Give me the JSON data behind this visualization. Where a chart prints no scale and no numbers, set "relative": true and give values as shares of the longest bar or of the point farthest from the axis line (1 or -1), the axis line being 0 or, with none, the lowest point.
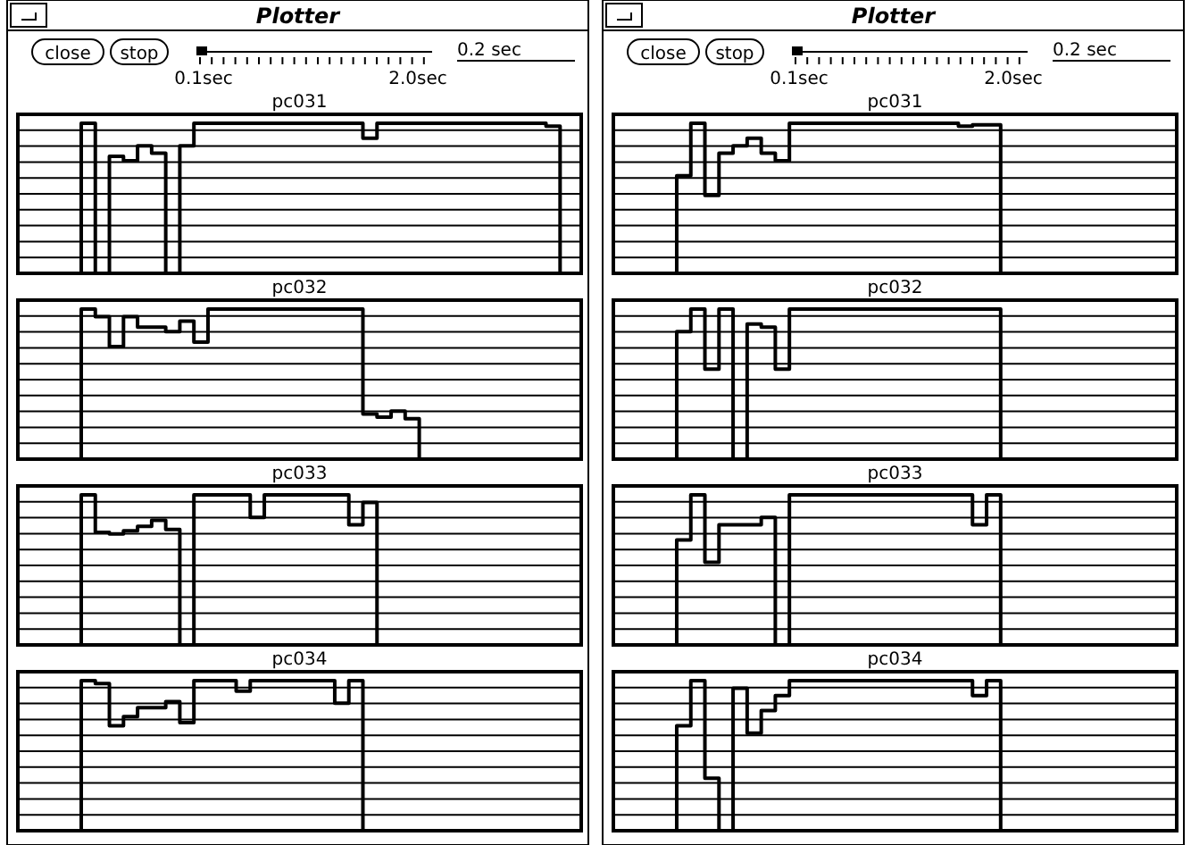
{
  "chart_data": [
    {
      "type": "other",
      "title": "Plotter",
      "annotations": [
        "close",
        "stop",
        "0.1sec",
        "2.0sec",
        "0.2 sec"
      ]
    },
    {
      "type": "step",
      "title": "pc031",
      "relative": true,
      "grid": true,
      "color": "#000000",
      "categories": [
        null,
        null,
        null,
        null,
        null,
        null,
        null,
        null,
        null,
        null,
        null,
        null,
        null,
        null,
        null,
        null,
        null,
        null,
        null,
        null,
        null,
        null,
        null,
        null,
        null,
        null,
        null,
        null,
        null,
        null,
        null,
        null,
        null,
        null,
        null,
        null,
        null,
        null,
        null,
        null
      ],
      "values": [
        null,
        null,
        null,
        0,
        1,
        0,
        0.78,
        0.75,
        0.85,
        0.8,
        0,
        0.85,
        1,
        1,
        1,
        1,
        1,
        1,
        1,
        1,
        1,
        1,
        1,
        1,
        0.9,
        1,
        1,
        1,
        1,
        1,
        1,
        1,
        1,
        1,
        1,
        1,
        1,
        0.98,
        0,
        null
      ]
    },
    {
      "type": "step",
      "title": "pc032",
      "relative": true,
      "grid": true,
      "color": "#000000",
      "categories": [
        null,
        null,
        null,
        null,
        null,
        null,
        null,
        null,
        null,
        null,
        null,
        null,
        null,
        null,
        null,
        null,
        null,
        null,
        null,
        null,
        null,
        null,
        null,
        null,
        null,
        null,
        null,
        null,
        null,
        null,
        null,
        null,
        null,
        null,
        null,
        null,
        null,
        null,
        null,
        null
      ],
      "values": [
        null,
        null,
        null,
        0,
        1,
        0.95,
        0.75,
        0.95,
        0.88,
        0.88,
        0.85,
        0.92,
        0.78,
        1,
        1,
        1,
        1,
        1,
        1,
        1,
        1,
        1,
        1,
        1,
        0.3,
        0.28,
        0.32,
        0.27,
        0,
        null,
        null,
        null,
        null,
        null,
        null,
        null,
        null,
        null,
        null,
        null
      ]
    },
    {
      "type": "step",
      "title": "pc033",
      "relative": true,
      "grid": true,
      "color": "#000000",
      "categories": [
        null,
        null,
        null,
        null,
        null,
        null,
        null,
        null,
        null,
        null,
        null,
        null,
        null,
        null,
        null,
        null,
        null,
        null,
        null,
        null,
        null,
        null,
        null,
        null,
        null,
        null,
        null,
        null,
        null,
        null,
        null,
        null,
        null,
        null,
        null,
        null,
        null,
        null,
        null,
        null
      ],
      "values": [
        null,
        null,
        null,
        0,
        1,
        0.75,
        0.74,
        0.76,
        0.79,
        0.83,
        0.77,
        0,
        1,
        1,
        1,
        1,
        0.85,
        1,
        1,
        1,
        1,
        1,
        1,
        0.8,
        0.95,
        0,
        null,
        null,
        null,
        null,
        null,
        null,
        null,
        null,
        null,
        null,
        null,
        null,
        null,
        null
      ]
    },
    {
      "type": "step",
      "title": "pc034",
      "relative": true,
      "grid": true,
      "color": "#000000",
      "categories": [
        null,
        null,
        null,
        null,
        null,
        null,
        null,
        null,
        null,
        null,
        null,
        null,
        null,
        null,
        null,
        null,
        null,
        null,
        null,
        null,
        null,
        null,
        null,
        null,
        null,
        null,
        null,
        null,
        null,
        null,
        null,
        null,
        null,
        null,
        null,
        null,
        null,
        null,
        null,
        null
      ],
      "values": [
        null,
        null,
        null,
        0,
        1,
        0.98,
        0.7,
        0.76,
        0.82,
        0.82,
        0.86,
        0.72,
        1,
        1,
        1,
        0.93,
        1,
        1,
        1,
        1,
        1,
        1,
        0.85,
        1,
        0,
        null,
        null,
        null,
        null,
        null,
        null,
        null,
        null,
        null,
        null,
        null,
        null,
        null,
        null,
        null
      ]
    },
    {
      "type": "other",
      "title": "Plotter",
      "annotations": [
        "close",
        "stop",
        "0.1sec",
        "2.0sec",
        "0.2 sec"
      ]
    },
    {
      "type": "step",
      "title": "pc031",
      "relative": true,
      "grid": true,
      "color": "#000000",
      "categories": [
        null,
        null,
        null,
        null,
        null,
        null,
        null,
        null,
        null,
        null,
        null,
        null,
        null,
        null,
        null,
        null,
        null,
        null,
        null,
        null,
        null,
        null,
        null,
        null,
        null,
        null,
        null,
        null,
        null,
        null,
        null,
        null,
        null,
        null,
        null,
        null,
        null,
        null,
        null,
        null
      ],
      "values": [
        null,
        null,
        null,
        0,
        0.65,
        1,
        0.52,
        0.8,
        0.85,
        0.9,
        0.8,
        0.75,
        1,
        1,
        1,
        1,
        1,
        1,
        1,
        1,
        1,
        1,
        1,
        1,
        0.98,
        0.99,
        0.99,
        0,
        null,
        null,
        null,
        null,
        null,
        null,
        null,
        null,
        null,
        null,
        null,
        null
      ]
    },
    {
      "type": "step",
      "title": "pc032",
      "relative": true,
      "grid": true,
      "color": "#000000",
      "categories": [
        null,
        null,
        null,
        null,
        null,
        null,
        null,
        null,
        null,
        null,
        null,
        null,
        null,
        null,
        null,
        null,
        null,
        null,
        null,
        null,
        null,
        null,
        null,
        null,
        null,
        null,
        null,
        null,
        null,
        null,
        null,
        null,
        null,
        null,
        null,
        null,
        null,
        null,
        null,
        null
      ],
      "values": [
        null,
        null,
        null,
        0,
        0.85,
        1,
        0.6,
        1,
        0,
        0.9,
        0.88,
        0.6,
        1,
        1,
        1,
        1,
        1,
        1,
        1,
        1,
        1,
        1,
        1,
        1,
        1,
        1,
        1,
        0,
        null,
        null,
        null,
        null,
        null,
        null,
        null,
        null,
        null,
        null,
        null,
        null
      ]
    },
    {
      "type": "step",
      "title": "pc033",
      "relative": true,
      "grid": true,
      "color": "#000000",
      "categories": [
        null,
        null,
        null,
        null,
        null,
        null,
        null,
        null,
        null,
        null,
        null,
        null,
        null,
        null,
        null,
        null,
        null,
        null,
        null,
        null,
        null,
        null,
        null,
        null,
        null,
        null,
        null,
        null,
        null,
        null,
        null,
        null,
        null,
        null,
        null,
        null,
        null,
        null,
        null,
        null
      ],
      "values": [
        null,
        null,
        null,
        0,
        0.7,
        1,
        0.55,
        0.8,
        0.8,
        0.8,
        0.85,
        0,
        1,
        1,
        1,
        1,
        1,
        1,
        1,
        1,
        1,
        1,
        1,
        1,
        1,
        0.8,
        1,
        0,
        null,
        null,
        null,
        null,
        null,
        null,
        null,
        null,
        null,
        null,
        null,
        null
      ]
    },
    {
      "type": "step",
      "title": "pc034",
      "relative": true,
      "grid": true,
      "color": "#000000",
      "categories": [
        null,
        null,
        null,
        null,
        null,
        null,
        null,
        null,
        null,
        null,
        null,
        null,
        null,
        null,
        null,
        null,
        null,
        null,
        null,
        null,
        null,
        null,
        null,
        null,
        null,
        null,
        null,
        null,
        null,
        null,
        null,
        null,
        null,
        null,
        null,
        null,
        null,
        null,
        null,
        null
      ],
      "values": [
        null,
        null,
        null,
        0,
        0.7,
        1,
        0.35,
        0,
        0.95,
        0.65,
        0.8,
        0.9,
        1,
        1,
        1,
        1,
        1,
        1,
        1,
        1,
        1,
        1,
        1,
        1,
        1,
        0.9,
        1,
        0,
        null,
        null,
        null,
        null,
        null,
        null,
        null,
        null,
        null,
        null,
        null,
        null
      ]
    }
  ]
}
